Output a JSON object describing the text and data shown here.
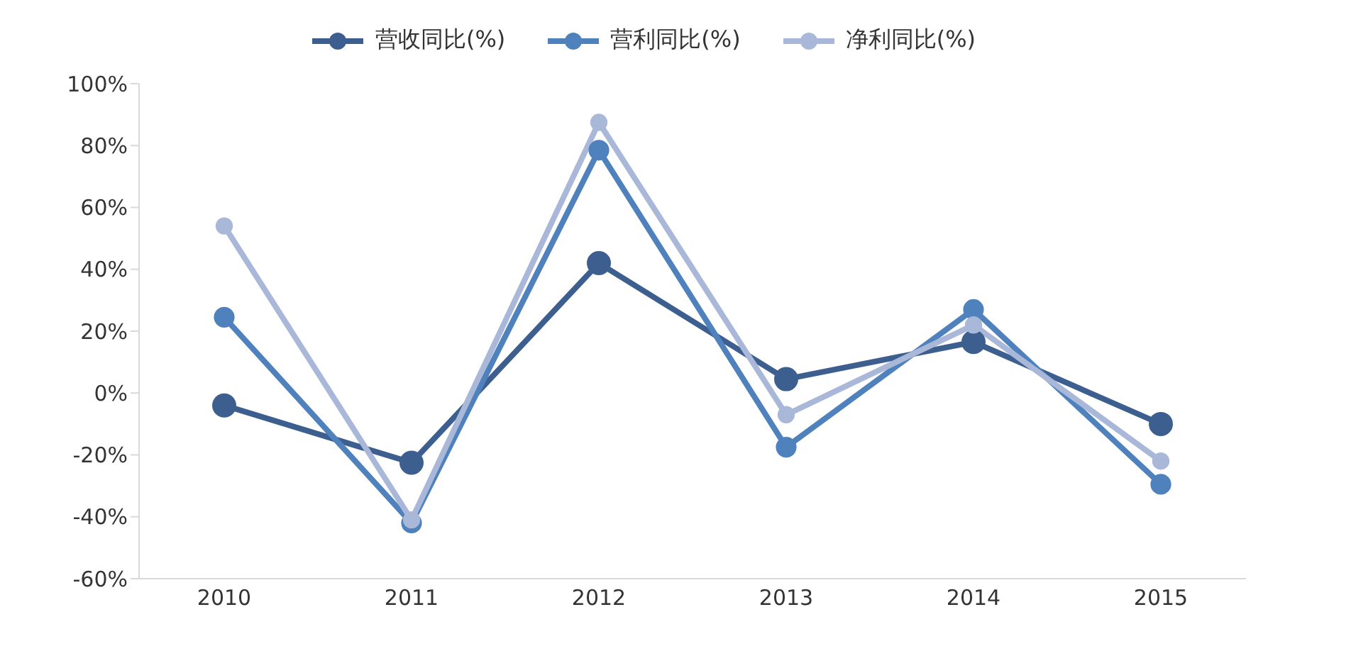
{
  "chart_data": {
    "type": "line",
    "categories": [
      "2010",
      "2011",
      "2012",
      "2013",
      "2014",
      "2015"
    ],
    "series": [
      {
        "name": "营收同比(%)",
        "color": "#3d5f8f",
        "values": [
          -4,
          -22.5,
          42,
          4.5,
          16.5,
          -10
        ]
      },
      {
        "name": "营利同比(%)",
        "color": "#4f81bd",
        "values": [
          24.5,
          -42,
          78.5,
          -17.5,
          27,
          -29.5
        ]
      },
      {
        "name": "净利同比(%)",
        "color": "#a9b8d8",
        "values": [
          54,
          -41,
          87.5,
          -7,
          22,
          -22
        ]
      }
    ],
    "ylim": [
      -60,
      100
    ],
    "yticks": [
      {
        "value": -60,
        "label": "-60%"
      },
      {
        "value": -40,
        "label": "-40%"
      },
      {
        "value": -20,
        "label": "-20%"
      },
      {
        "value": 0,
        "label": "0%"
      },
      {
        "value": 20,
        "label": "20%"
      },
      {
        "value": 40,
        "label": "40%"
      },
      {
        "value": 60,
        "label": "60%"
      },
      {
        "value": 80,
        "label": "80%"
      },
      {
        "value": 100,
        "label": "100%"
      }
    ],
    "grid": false,
    "legend": "top",
    "marker": "circle",
    "line_style": "solid"
  }
}
